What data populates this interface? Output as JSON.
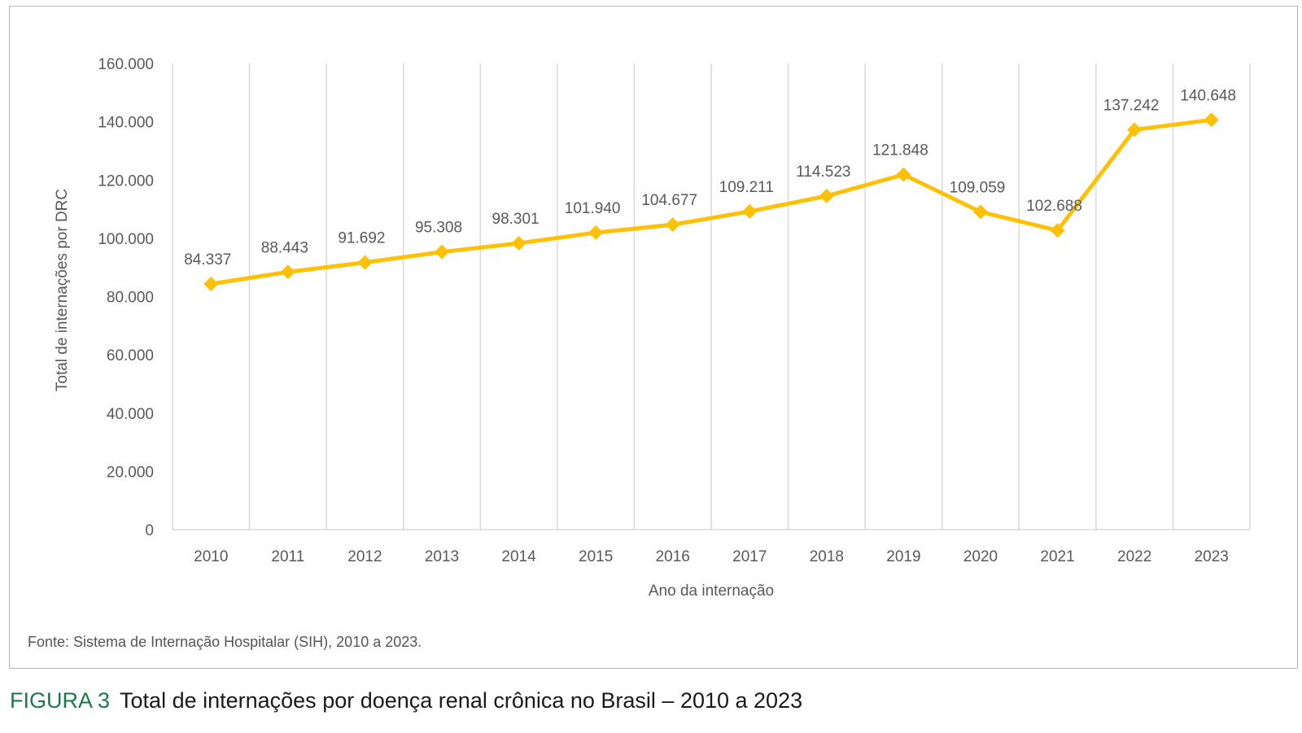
{
  "figure": {
    "label": "FIGURA 3",
    "title": "Total de internações por doença renal crônica no Brasil – 2010 a 2023"
  },
  "source": "Fonte: Sistema de Internação Hospitalar (SIH), 2010 a 2023.",
  "colors": {
    "line": "#FFC107",
    "grid": "#d9d9d9",
    "text": "#595959",
    "figure_label": "#1b7a4a"
  },
  "chart_data": {
    "type": "line",
    "title": "",
    "xlabel": "Ano da internação",
    "ylabel": "Total de internações por DRC",
    "categories": [
      "2010",
      "2011",
      "2012",
      "2013",
      "2014",
      "2015",
      "2016",
      "2017",
      "2018",
      "2019",
      "2020",
      "2021",
      "2022",
      "2023"
    ],
    "values": [
      84337,
      88443,
      91692,
      95308,
      98301,
      101940,
      104677,
      109211,
      114523,
      121848,
      109059,
      102688,
      137242,
      140648
    ],
    "data_labels": [
      "84.337",
      "88.443",
      "91.692",
      "95.308",
      "98.301",
      "101.940",
      "104.677",
      "109.211",
      "114.523",
      "121.848",
      "109.059",
      "102.688",
      "137.242",
      "140.648"
    ],
    "ylim": [
      0,
      160000
    ],
    "y_ticks": [
      0,
      20000,
      40000,
      60000,
      80000,
      100000,
      120000,
      140000,
      160000
    ],
    "y_tick_labels": [
      "0",
      "20.000",
      "40.000",
      "60.000",
      "80.000",
      "100.000",
      "120.000",
      "140.000",
      "160.000"
    ],
    "marker": "diamond",
    "grid": "vertical",
    "legend": "none"
  }
}
